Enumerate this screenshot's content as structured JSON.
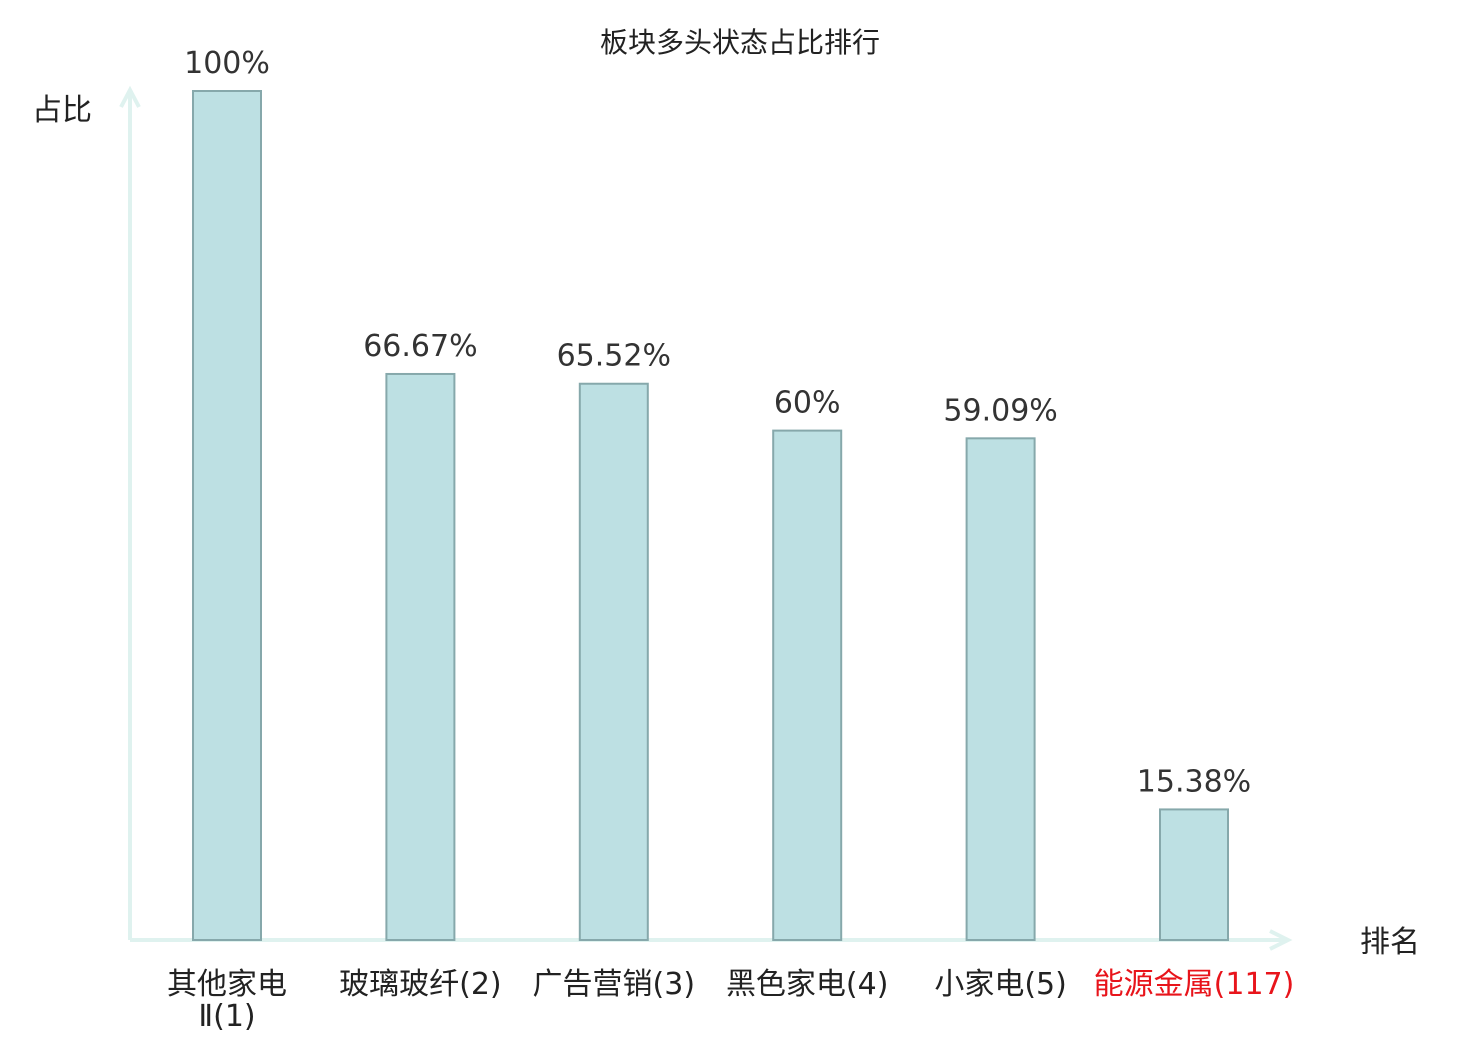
{
  "chart_data": {
    "type": "bar",
    "title": "板块多头状态占比排行",
    "ylabel": "占比",
    "xlabel": "排名",
    "ylim": [
      0,
      100
    ],
    "grid": false,
    "categories": [
      "其他家电Ⅱ(1)",
      "玻璃玻纤(2)",
      "广告营销(3)",
      "黑色家电(4)",
      "小家电(5)",
      "能源金属(117)"
    ],
    "category_lines": [
      [
        "其他家电",
        "Ⅱ(1)"
      ],
      [
        "玻璃玻纤(2)"
      ],
      [
        "广告营销(3)"
      ],
      [
        "黑色家电(4)"
      ],
      [
        "小家电(5)"
      ],
      [
        "能源金属(117)"
      ]
    ],
    "values": [
      100,
      66.67,
      65.52,
      60,
      59.09,
      15.38
    ],
    "value_labels": [
      "100%",
      "66.67%",
      "65.52%",
      "60%",
      "59.09%",
      "15.38%"
    ],
    "highlight_index": 5,
    "colors": {
      "bar_fill": "#bde0e3",
      "bar_stroke": "#86a8ab",
      "axis": "#dff2ef",
      "label": "#222222",
      "highlight_label": "#e8141b"
    }
  }
}
